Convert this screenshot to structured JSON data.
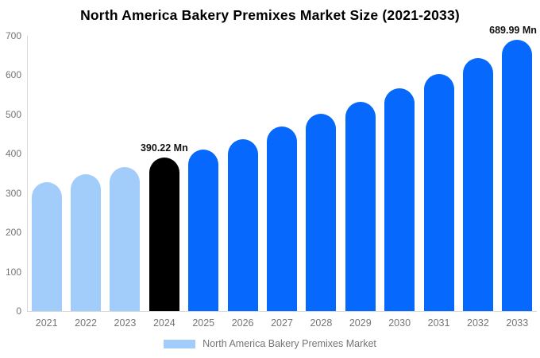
{
  "chart_data": {
    "type": "bar",
    "title": "North America Bakery Premixes Market Size (2021-2033)",
    "legend": "North America Bakery Premixes Market",
    "unit": "Mn",
    "categories": [
      "2021",
      "2022",
      "2023",
      "2024",
      "2025",
      "2026",
      "2027",
      "2028",
      "2029",
      "2030",
      "2031",
      "2032",
      "2033"
    ],
    "values": [
      328,
      347,
      367,
      390.22,
      411,
      438,
      469,
      501,
      533,
      567,
      603,
      644,
      689.99
    ],
    "bar_roles": [
      "past",
      "past",
      "past",
      "highlight",
      "forecast",
      "forecast",
      "forecast",
      "forecast",
      "forecast",
      "forecast",
      "forecast",
      "forecast",
      "forecast"
    ],
    "annotations": [
      {
        "category": "2024",
        "label": "390.22 Mn"
      },
      {
        "category": "2033",
        "label": "689.99 Mn"
      }
    ],
    "yticks": [
      0,
      100,
      200,
      300,
      400,
      500,
      600,
      700
    ],
    "ylim": [
      0,
      700
    ],
    "xlabel": "",
    "ylabel": "",
    "grid": false,
    "legend_position": "bottom-center",
    "colors": {
      "past": "#a2cdfb",
      "highlight": "#000000",
      "forecast": "#0668fc",
      "axis_line": "#d9d9d9",
      "tick_text": "#757575",
      "title_text": "#000000",
      "annotation_text": "#111111",
      "background": "#ffffff"
    }
  }
}
